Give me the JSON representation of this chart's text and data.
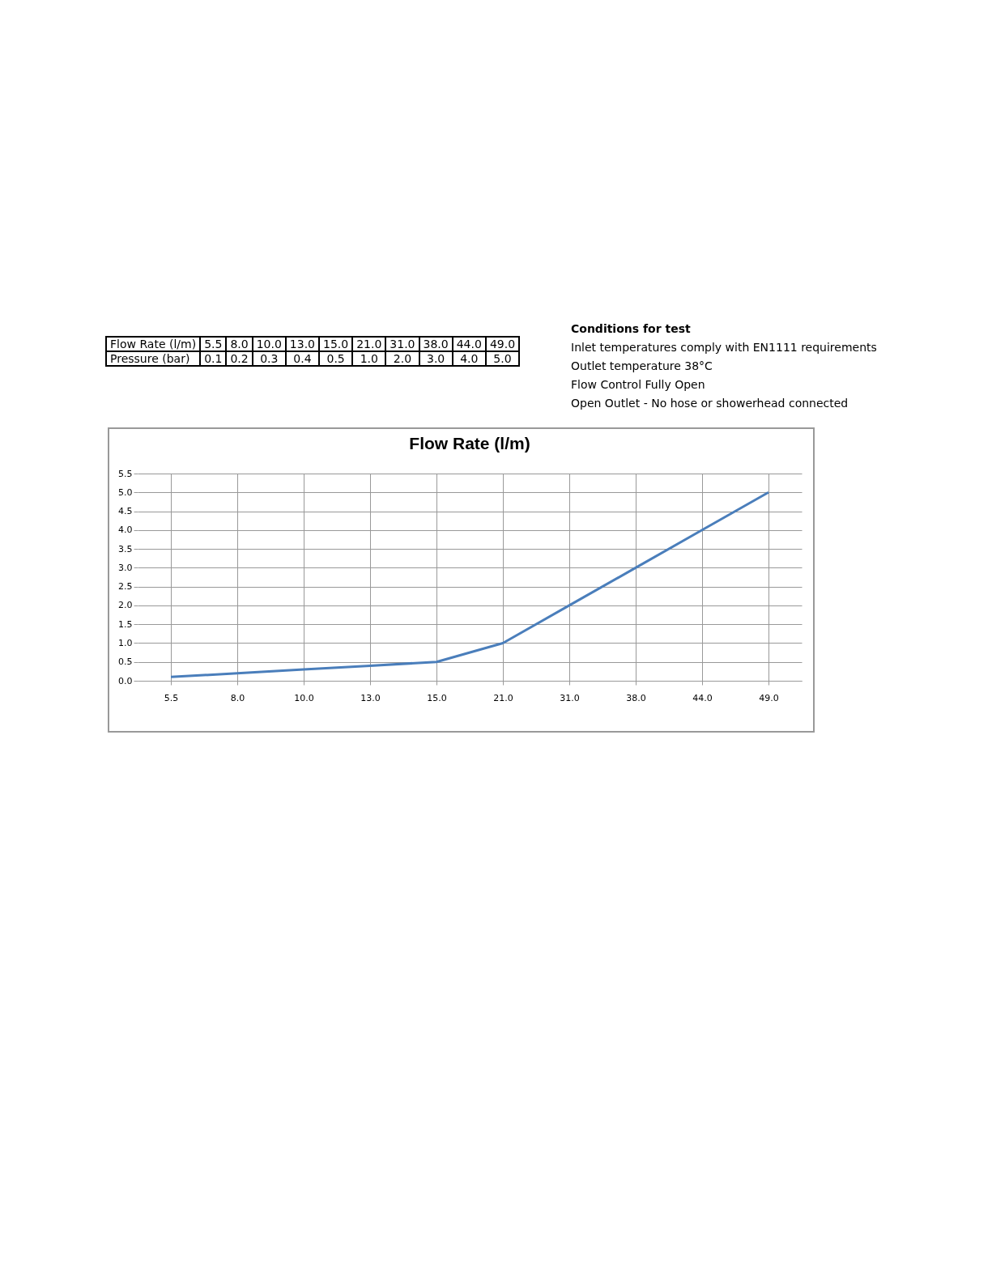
{
  "chart_data": [
    {
      "type": "other",
      "cell_labels": [
        [
          "Flow Rate (l/m)",
          "5.5",
          "8.0",
          "10.0",
          "13.0",
          "15.0",
          "21.0",
          "31.0",
          "38.0",
          "44.0",
          "49.0"
        ],
        [
          "Pressure (bar)",
          "0.1",
          "0.2",
          "0.3",
          "0.4",
          "0.5",
          "1.0",
          "2.0",
          "3.0",
          "4.0",
          "5.0"
        ]
      ]
    },
    {
      "type": "line",
      "title": "Flow Rate (l/m)",
      "categories": [
        "5.5",
        "8.0",
        "10.0",
        "13.0",
        "15.0",
        "21.0",
        "31.0",
        "38.0",
        "44.0",
        "49.0"
      ],
      "series": [
        {
          "color": "#4a7ebb",
          "values": [
            0.1,
            0.2,
            0.3,
            0.4,
            0.5,
            1.0,
            2.0,
            3.0,
            4.0,
            5.0
          ]
        }
      ],
      "ylim": [
        0,
        5.5
      ],
      "yticks": [
        {
          "value": 0,
          "label": "0.0"
        },
        {
          "value": 0.5,
          "label": "0.5"
        },
        {
          "value": 1,
          "label": "1.0"
        },
        {
          "value": 1.5,
          "label": "1.5"
        },
        {
          "value": 2,
          "label": "2.0"
        },
        {
          "value": 2.5,
          "label": "2.5"
        },
        {
          "value": 3,
          "label": "3.0"
        },
        {
          "value": 3.5,
          "label": "3.5"
        },
        {
          "value": 4,
          "label": "4.0"
        },
        {
          "value": 4.5,
          "label": "4.5"
        },
        {
          "value": 5,
          "label": "5.0"
        },
        {
          "value": 5.5,
          "label": "5.5"
        }
      ],
      "grid": true,
      "legend": false,
      "marker": "none",
      "line_style": "solid",
      "annotations": [
        "Conditions for test",
        "Inlet temperatures comply with EN1111 requirements",
        "Outlet temperature 38°C",
        "Flow Control Fully Open",
        "Open Outlet - No hose or showerhead connected"
      ]
    }
  ]
}
